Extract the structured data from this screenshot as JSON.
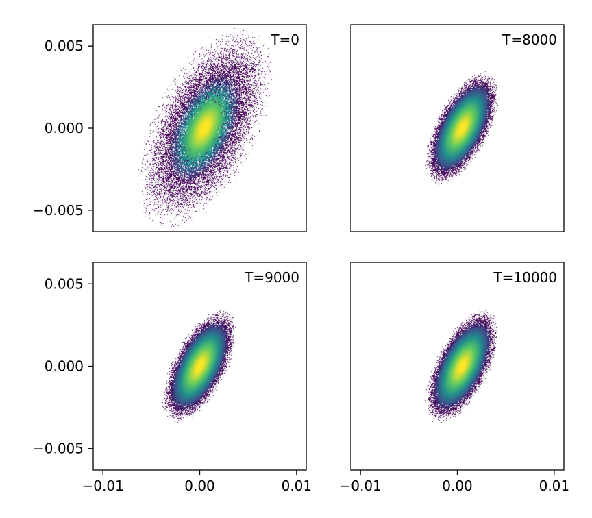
{
  "chart_data": [
    {
      "type": "scatter",
      "subtype": "density",
      "title": "T=0",
      "xlabel": "",
      "ylabel": "",
      "xlim": [
        -0.011,
        0.011
      ],
      "ylim": [
        -0.0063,
        0.0063
      ],
      "xticks": [],
      "yticks": [
        -0.005,
        0.0,
        0.005
      ],
      "ytick_labels": [
        "−0.005",
        "0.000",
        "0.005"
      ],
      "center": [
        0.0005,
        0.0
      ],
      "spread": 0.0015,
      "angle_deg": 38,
      "ellipse_axes": [
        0.0088,
        0.0048
      ],
      "edge_noise": 0.0022
    },
    {
      "type": "scatter",
      "subtype": "density",
      "title": "T=8000",
      "xlabel": "",
      "ylabel": "",
      "xlim": [
        -0.011,
        0.011
      ],
      "ylim": [
        -0.0063,
        0.0063
      ],
      "xticks": [],
      "yticks": [],
      "center": [
        0.0005,
        0.0
      ],
      "spread": 0.0015,
      "angle_deg": 40,
      "ellipse_axes": [
        0.0075,
        0.0037
      ],
      "edge_noise": 0.0006
    },
    {
      "type": "scatter",
      "subtype": "density",
      "title": "T=9000",
      "xlabel": "",
      "ylabel": "",
      "xlim": [
        -0.011,
        0.011
      ],
      "ylim": [
        -0.0063,
        0.0063
      ],
      "xticks": [
        -0.01,
        0.0,
        0.01
      ],
      "xtick_labels": [
        "−0.01",
        "0.00",
        "0.01"
      ],
      "yticks": [
        -0.005,
        0.0,
        0.005
      ],
      "ytick_labels": [
        "−0.005",
        "0.000",
        "0.005"
      ],
      "center": [
        0.0,
        0.0
      ],
      "spread": 0.0015,
      "angle_deg": 40,
      "ellipse_axes": [
        0.0075,
        0.0037
      ],
      "edge_noise": 0.0006
    },
    {
      "type": "scatter",
      "subtype": "density",
      "title": "T=10000",
      "xlabel": "",
      "ylabel": "",
      "xlim": [
        -0.011,
        0.011
      ],
      "ylim": [
        -0.0063,
        0.0063
      ],
      "xticks": [
        -0.01,
        0.0,
        0.01
      ],
      "xtick_labels": [
        "−0.01",
        "0.00",
        "0.01"
      ],
      "yticks": [],
      "center": [
        0.0005,
        0.0
      ],
      "spread": 0.0015,
      "angle_deg": 40,
      "ellipse_axes": [
        0.0075,
        0.0037
      ],
      "edge_noise": 0.0006
    }
  ],
  "colormap": [
    "#440154",
    "#3b528b",
    "#21918c",
    "#5ec962",
    "#fde725"
  ]
}
